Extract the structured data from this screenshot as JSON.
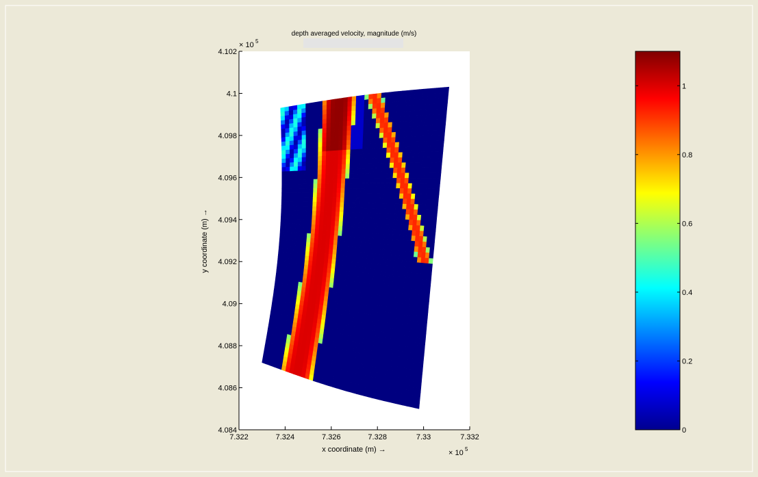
{
  "chart_data": {
    "type": "heatmap",
    "title": "depth averaged velocity, magnitude (m/s)",
    "xlabel": "x coordinate (m) →",
    "ylabel": "y coordinate (m) →",
    "x_exponent_label": "× 10",
    "y_exponent_label": "× 10",
    "exponent": "5",
    "xlim": [
      7.322,
      7.332
    ],
    "ylim": [
      4.084,
      4.102
    ],
    "xticks": [
      "7.322",
      "7.324",
      "7.326",
      "7.328",
      "7.33",
      "7.332"
    ],
    "yticks": [
      "4.084",
      "4.086",
      "4.088",
      "4.09",
      "4.092",
      "4.094",
      "4.096",
      "4.098",
      "4.1",
      "4.102"
    ],
    "domain_outline": {
      "upper_left": [
        7.3238,
        4.0993
      ],
      "upper_right": [
        7.3311,
        4.1003
      ],
      "lower_left": [
        7.323,
        4.0872
      ],
      "lower_right": [
        7.3298,
        4.085
      ]
    },
    "flow_bands": [
      {
        "name": "main channel",
        "v_peak": 1.0,
        "center_top": 0.35,
        "center_bottom": 0.22,
        "width": 0.2
      },
      {
        "name": "upper right branch",
        "v_peak": 0.92,
        "center_top": 0.55,
        "center_bottom": 0.95,
        "width": 0.1
      }
    ],
    "colorbar": {
      "colormap": "jet",
      "range": [
        0,
        1.1
      ],
      "ticks": [
        "0",
        "0.2",
        "0.4",
        "0.6",
        "0.8",
        "1"
      ]
    }
  }
}
